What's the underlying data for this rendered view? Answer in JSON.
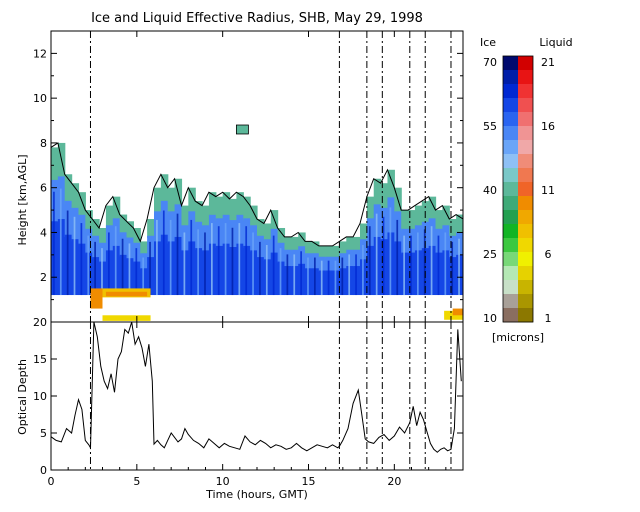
{
  "chart_data": [
    {
      "type": "heatmap",
      "title": "Ice and Liquid Effective Radius, SHB, May 29, 1998",
      "xlabel": "",
      "ylabel": "Height [km,AGL]",
      "xlim": [
        0,
        24
      ],
      "ylim": [
        0,
        13
      ],
      "xticks": [
        0,
        5,
        10,
        15,
        20
      ],
      "yticks": [
        2,
        4,
        6,
        8,
        10,
        12
      ],
      "colorbar": {
        "ice_label": "Ice",
        "liquid_label": "Liquid",
        "units_label": "[microns]",
        "ice_ticks": [
          "70",
          "55",
          "40",
          "25",
          "10"
        ],
        "liquid_ticks": [
          "21",
          "16",
          "11",
          "6",
          "1"
        ],
        "ice_colors": [
          "#000a6e",
          "#001ea8",
          "#0028d2",
          "#1446e6",
          "#2a64f0",
          "#4a86f5",
          "#6aa5f8",
          "#8ec0f5",
          "#7ac8c8",
          "#5cb89a",
          "#3faa78",
          "#22a050",
          "#12b424",
          "#3cc840",
          "#78d878",
          "#b4e8b4",
          "#c8e0c8",
          "#a8a098",
          "#8a6e60"
        ],
        "liquid_colors": [
          "#d20000",
          "#e81414",
          "#f03232",
          "#f05050",
          "#f07070",
          "#f09494",
          "#f0a8a8",
          "#f08c78",
          "#f07850",
          "#f06428",
          "#f08c00",
          "#f0a800",
          "#f0c000",
          "#f0d800",
          "#f0f000",
          "#e6d200",
          "#c8b400",
          "#aa9600",
          "#8c7800"
        ]
      },
      "cloud_top_km": [
        [
          0,
          7.8
        ],
        [
          0.4,
          8.0
        ],
        [
          0.8,
          6.6
        ],
        [
          1.2,
          6.2
        ],
        [
          1.6,
          5.8
        ],
        [
          2.0,
          5.0
        ],
        [
          2.4,
          4.6
        ],
        [
          2.8,
          4.2
        ],
        [
          3.2,
          5.2
        ],
        [
          3.6,
          5.6
        ],
        [
          4.0,
          4.8
        ],
        [
          4.4,
          4.5
        ],
        [
          4.8,
          4.2
        ],
        [
          5.2,
          3.6
        ],
        [
          5.6,
          4.6
        ],
        [
          6.0,
          6.0
        ],
        [
          6.4,
          6.6
        ],
        [
          6.8,
          6.0
        ],
        [
          7.2,
          6.4
        ],
        [
          7.6,
          5.2
        ],
        [
          8.0,
          6.0
        ],
        [
          8.4,
          5.4
        ],
        [
          8.8,
          5.2
        ],
        [
          9.2,
          5.8
        ],
        [
          9.6,
          5.6
        ],
        [
          10.0,
          5.8
        ],
        [
          10.4,
          5.5
        ],
        [
          10.8,
          5.8
        ],
        [
          11.2,
          5.6
        ],
        [
          11.6,
          5.2
        ],
        [
          12.0,
          4.6
        ],
        [
          12.4,
          4.4
        ],
        [
          12.8,
          5.0
        ],
        [
          13.2,
          4.2
        ],
        [
          13.6,
          3.8
        ],
        [
          14.0,
          3.8
        ],
        [
          14.4,
          4.0
        ],
        [
          14.8,
          3.6
        ],
        [
          15.2,
          3.6
        ],
        [
          15.6,
          3.4
        ],
        [
          16.0,
          3.4
        ],
        [
          16.4,
          3.4
        ],
        [
          16.8,
          3.6
        ],
        [
          17.2,
          3.8
        ],
        [
          17.6,
          3.8
        ],
        [
          18.0,
          4.4
        ],
        [
          18.4,
          5.6
        ],
        [
          18.8,
          6.4
        ],
        [
          19.2,
          6.2
        ],
        [
          19.6,
          6.8
        ],
        [
          20.0,
          6.0
        ],
        [
          20.4,
          5.0
        ],
        [
          20.8,
          5.0
        ],
        [
          21.2,
          5.2
        ],
        [
          21.6,
          5.4
        ],
        [
          22.0,
          5.6
        ],
        [
          22.4,
          5.0
        ],
        [
          22.8,
          5.2
        ],
        [
          23.2,
          4.6
        ],
        [
          23.6,
          4.8
        ],
        [
          24.0,
          4.6
        ]
      ],
      "cloud_base_km": 1.2,
      "event_lines_hours": [
        2.3,
        16.8,
        18.4,
        19.3,
        20.9,
        21.8,
        23.3
      ]
    },
    {
      "type": "line",
      "xlabel": "Time (hours, GMT)",
      "ylabel": "Optical Depth",
      "xlim": [
        0,
        24
      ],
      "ylim": [
        0,
        20
      ],
      "xticks": [
        0,
        5,
        10,
        15,
        20
      ],
      "yticks": [
        0,
        5,
        10,
        15,
        20
      ],
      "x": [
        0,
        0.3,
        0.6,
        0.9,
        1.2,
        1.4,
        1.6,
        1.8,
        2.0,
        2.2,
        2.3,
        2.5,
        2.7,
        2.9,
        3.1,
        3.3,
        3.5,
        3.7,
        3.9,
        4.1,
        4.3,
        4.5,
        4.7,
        4.9,
        5.1,
        5.3,
        5.5,
        5.7,
        5.9,
        6.0,
        6.2,
        6.4,
        6.6,
        6.8,
        7.0,
        7.2,
        7.4,
        7.6,
        7.8,
        8.0,
        8.3,
        8.6,
        8.9,
        9.2,
        9.5,
        9.8,
        10.1,
        10.4,
        10.7,
        11.0,
        11.3,
        11.6,
        11.9,
        12.2,
        12.5,
        12.8,
        13.1,
        13.4,
        13.7,
        14.0,
        14.3,
        14.6,
        14.9,
        15.2,
        15.5,
        15.8,
        16.1,
        16.4,
        16.7,
        16.8,
        17.0,
        17.3,
        17.6,
        17.9,
        18.1,
        18.3,
        18.5,
        18.8,
        19.1,
        19.4,
        19.7,
        20.0,
        20.3,
        20.6,
        20.9,
        21.1,
        21.3,
        21.5,
        21.7,
        21.9,
        22.1,
        22.3,
        22.5,
        22.7,
        22.9,
        23.1,
        23.3,
        23.5,
        23.7,
        23.9
      ],
      "y": [
        4.5,
        4.0,
        3.8,
        5.6,
        5.0,
        7.4,
        9.5,
        8.2,
        4.0,
        3.4,
        3.0,
        20,
        18,
        14,
        12,
        11,
        13,
        10.5,
        15,
        16,
        19,
        18.5,
        20,
        17,
        18,
        16.5,
        14,
        17,
        12,
        3.5,
        4.0,
        3.4,
        3.0,
        4.0,
        5.0,
        4.4,
        3.8,
        4.2,
        5.6,
        4.8,
        4.0,
        3.6,
        3.0,
        4.2,
        3.6,
        3.0,
        3.6,
        3.2,
        3.0,
        2.8,
        4.6,
        3.8,
        3.4,
        4.0,
        3.6,
        3.0,
        3.4,
        3.2,
        2.8,
        3.0,
        3.6,
        3.0,
        2.6,
        3.0,
        3.4,
        3.2,
        3.0,
        3.4,
        3.0,
        3.2,
        4.0,
        5.6,
        9.0,
        10.8,
        7.6,
        4.2,
        3.8,
        3.6,
        4.4,
        4.8,
        4.0,
        4.6,
        5.8,
        5.0,
        6.4,
        8.6,
        6.0,
        7.8,
        6.8,
        5.2,
        3.6,
        2.8,
        2.4,
        2.8,
        3.0,
        2.6,
        2.8,
        5.6,
        19,
        12
      ]
    }
  ]
}
